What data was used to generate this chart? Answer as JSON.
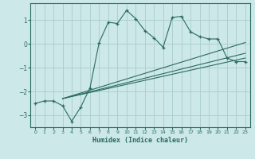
{
  "xlabel": "Humidex (Indice chaleur)",
  "background_color": "#cce8e8",
  "grid_color": "#aacccc",
  "line_color": "#2a6b5e",
  "xlim": [
    -0.5,
    23.5
  ],
  "ylim": [
    -3.5,
    1.7
  ],
  "yticks": [
    -3,
    -2,
    -1,
    0,
    1
  ],
  "xticks": [
    0,
    1,
    2,
    3,
    4,
    5,
    6,
    7,
    8,
    9,
    10,
    11,
    12,
    13,
    14,
    15,
    16,
    17,
    18,
    19,
    20,
    21,
    22,
    23
  ],
  "line1_x": [
    0,
    1,
    2,
    3,
    4,
    5,
    6,
    7,
    8,
    9,
    10,
    11,
    12,
    13,
    14,
    15,
    16,
    17,
    18,
    19,
    20,
    21,
    22,
    23
  ],
  "line1_y": [
    -2.5,
    -2.4,
    -2.4,
    -2.6,
    -3.25,
    -2.65,
    -1.85,
    0.05,
    0.9,
    0.85,
    1.4,
    1.05,
    0.55,
    0.25,
    -0.15,
    1.1,
    1.15,
    0.5,
    0.3,
    0.2,
    0.2,
    -0.6,
    -0.75,
    -0.75
  ],
  "line2_x": [
    3,
    23
  ],
  "line2_y": [
    -2.3,
    -0.6
  ],
  "line3_x": [
    3,
    23
  ],
  "line3_y": [
    -2.3,
    -0.4
  ],
  "line4_x": [
    3,
    23
  ],
  "line4_y": [
    -2.3,
    0.05
  ]
}
